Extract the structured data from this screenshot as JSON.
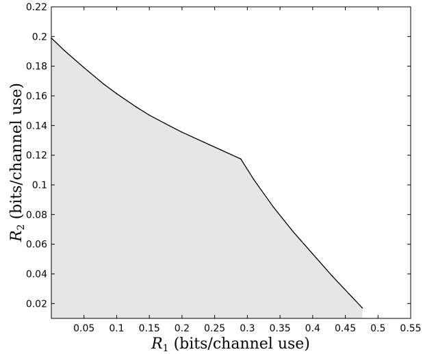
{
  "chart_data": {
    "type": "area",
    "title": "",
    "xlabel": {
      "symbol": "R",
      "subscript": "1",
      "text": " (bits/channel use)"
    },
    "ylabel": {
      "symbol": "R",
      "subscript": "2",
      "text": " (bits/channel use)"
    },
    "xlim": [
      0.0,
      0.55
    ],
    "ylim": [
      0.01,
      0.22
    ],
    "xticks": [
      0.05,
      0.1,
      0.15,
      0.2,
      0.25,
      0.3,
      0.35,
      0.4,
      0.45,
      0.5,
      0.55
    ],
    "xtick_labels": [
      "0.05",
      "0.1",
      "0.15",
      "0.2",
      "0.25",
      "0.3",
      "0.35",
      "0.4",
      "0.45",
      "0.5",
      "0.55"
    ],
    "yticks": [
      0.02,
      0.04,
      0.06,
      0.08,
      0.1,
      0.12,
      0.14,
      0.16,
      0.18,
      0.2,
      0.22
    ],
    "ytick_labels": [
      "0.02",
      "0.04",
      "0.06",
      "0.08",
      "0.1",
      "0.12",
      "0.14",
      "0.16",
      "0.18",
      "0.2",
      "0.22"
    ],
    "grid": false,
    "fill_color": "#e6e6e6",
    "line_color": "#000000",
    "series": [
      {
        "x": [
          0.0,
          0.02,
          0.05,
          0.08,
          0.1,
          0.13,
          0.15,
          0.18,
          0.2,
          0.23,
          0.26,
          0.29,
          0.31,
          0.34,
          0.37,
          0.4,
          0.43,
          0.46,
          0.476
        ],
        "y": [
          0.199,
          0.1905,
          0.179,
          0.168,
          0.1615,
          0.1525,
          0.147,
          0.14,
          0.1355,
          0.1295,
          0.1235,
          0.1175,
          0.1035,
          0.085,
          0.0685,
          0.0535,
          0.0385,
          0.0245,
          0.017
        ]
      }
    ]
  }
}
